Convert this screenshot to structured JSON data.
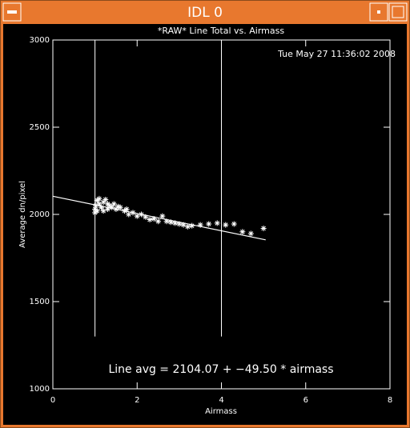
{
  "window": {
    "title": "IDL 0"
  },
  "chart_data": {
    "type": "scatter",
    "title": "*RAW* Line Total vs. Airmass",
    "date": "Tue May 27 11:36:02 2008",
    "x_label": "Airmass",
    "y_label": "Average dn/pixel",
    "annotation": "Line avg = 2104.07 + −49.50 * airmass",
    "xlim": [
      0,
      8
    ],
    "xticks": [
      0,
      2,
      4,
      6,
      8
    ],
    "ylim": [
      1000,
      3000
    ],
    "yticks": [
      1000,
      1500,
      2000,
      2500,
      3000
    ],
    "color": "#ffffff",
    "fit": {
      "intercept": 2104.07,
      "slope": -49.5,
      "xrange": [
        0,
        5.05
      ]
    },
    "vlines": {
      "x": [
        1,
        4
      ],
      "bottom": 1300
    },
    "series": [
      {
        "name": "Line total",
        "x": [
          1.0,
          1.0,
          1.02,
          1.05,
          1.05,
          1.1,
          1.1,
          1.15,
          1.2,
          1.2,
          1.25,
          1.3,
          1.3,
          1.35,
          1.4,
          1.45,
          1.5,
          1.55,
          1.6,
          1.7,
          1.75,
          1.8,
          1.9,
          2.0,
          2.1,
          2.2,
          2.3,
          2.4,
          2.5,
          2.6,
          2.7,
          2.8,
          2.9,
          3.0,
          3.1,
          3.2,
          3.3,
          3.5,
          3.7,
          3.9,
          4.1,
          4.3,
          4.5,
          4.7,
          5.0
        ],
        "values": [
          2010,
          2030,
          2050,
          2080,
          2020,
          2060,
          2090,
          2040,
          2070,
          2020,
          2085,
          2060,
          2030,
          2050,
          2040,
          2060,
          2030,
          2045,
          2040,
          2020,
          2030,
          2000,
          2010,
          1990,
          2000,
          1985,
          1970,
          1975,
          1960,
          1990,
          1960,
          1955,
          1950,
          1945,
          1940,
          1930,
          1935,
          1940,
          1945,
          1950,
          1940,
          1945,
          1900,
          1890,
          1920
        ]
      }
    ]
  }
}
